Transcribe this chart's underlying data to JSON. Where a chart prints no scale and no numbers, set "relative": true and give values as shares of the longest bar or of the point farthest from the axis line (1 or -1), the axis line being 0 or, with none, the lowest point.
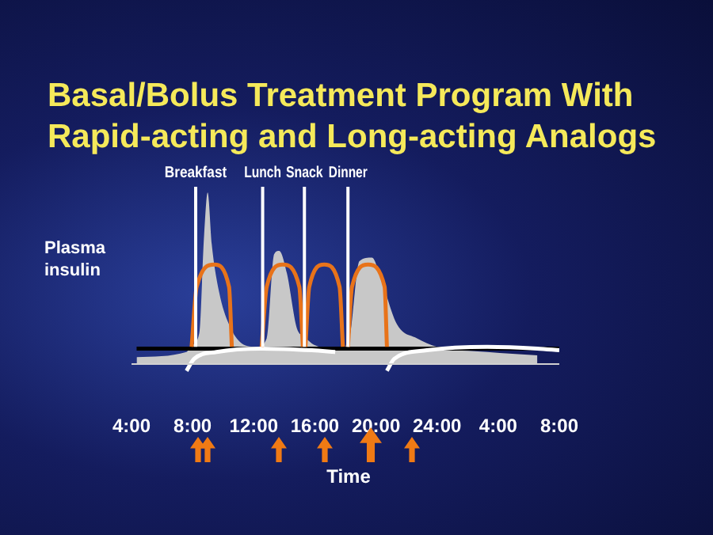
{
  "chart_data": {
    "type": "line",
    "title": "Basal/Bolus Treatment Program With Rapid-acting and Long-acting Analogs",
    "xlabel": "Time",
    "ylabel": "Plasma insulin",
    "relative": true,
    "xlim": [
      "--01-01T04:00",
      "--01-02T08:00"
    ],
    "xticks": [
      {
        "value": "--01-01T04:00",
        "label": "4:00"
      },
      {
        "value": "--01-01T08:00",
        "label": "8:00"
      },
      {
        "value": "--01-01T12:00",
        "label": "12:00"
      },
      {
        "value": "--01-01T16:00",
        "label": "16:00"
      },
      {
        "value": "--01-01T20:00",
        "label": "20:00"
      },
      {
        "value": "--01-02T00:00",
        "label": "24:00"
      },
      {
        "value": "--01-02T04:00",
        "label": "4:00"
      },
      {
        "value": "--01-02T08:00",
        "label": "8:00"
      }
    ],
    "series": [
      {
        "type": "area",
        "color": "#c8c8c8",
        "x": [
          "--01-01T04:20",
          "--01-01T07:36",
          "--01-01T07:56",
          "--01-01T08:26",
          "--01-01T08:45",
          "--01-01T08:59",
          "--01-01T09:15",
          "--01-01T09:44",
          "--01-01T10:23",
          "--01-01T11:13",
          "--01-01T12:12",
          "--01-01T12:51",
          "--01-01T13:20",
          "--01-01T13:40",
          "--01-01T14:10",
          "--01-01T14:49",
          "--01-01T15:19",
          "--01-01T15:48",
          "--01-01T16:18",
          "--01-01T17:26",
          "--01-01T18:16",
          "--01-01T18:55",
          "--01-01T19:44",
          "--01-01T20:23",
          "--01-01T21:23",
          "--01-01T22:41",
          "--01-02T00:00",
          "--01-02T03:17",
          "--01-02T06:34"
        ],
        "values": [
          0.04,
          0.07,
          0.11,
          0.18,
          0.75,
          1,
          0.7,
          0.42,
          0.23,
          0.12,
          0.1,
          0.15,
          0.64,
          0.66,
          0.53,
          0.21,
          0.16,
          0.12,
          0.1,
          0.08,
          0.15,
          0.6,
          0.62,
          0.48,
          0.23,
          0.15,
          0.1,
          0.07,
          0.05
        ]
      },
      {
        "type": "line",
        "color": "#000000",
        "x": [
          "--01-01T04:20",
          "--01-02T08:00"
        ],
        "values": [
          0.09,
          0.09
        ]
      },
      {
        "type": "line",
        "color": "#ffffff",
        "x": [
          "--01-01T07:36",
          "--01-01T08:06",
          "--01-01T09:34",
          "--01-01T12:31",
          "--01-01T15:48",
          "--01-01T17:20",
          "--01-01T17:30",
          "--01-01T20:43",
          "--01-01T21:12",
          "--01-01T23:20",
          "--01-02T03:17",
          "--01-02T06:34",
          "--01-02T08:00"
        ],
        "values": [
          -0.04,
          0.03,
          0.07,
          0.09,
          0.08,
          0.07,
          null,
          -0.04,
          0.03,
          0.08,
          0.1,
          0.09,
          0.08
        ]
      },
      {
        "type": "line",
        "color": "#e8731a",
        "x": [
          "--01-01T07:56",
          "--01-01T08:16",
          "--01-01T09:25",
          "--01-01T10:23",
          "--01-01T10:34",
          "--01-01T10:54",
          "--01-01T12:31",
          "--01-01T12:51",
          "--01-01T13:54",
          "--01-01T14:59",
          "--01-01T15:13",
          "--01-01T15:18",
          "--01-01T15:23",
          "--01-01T15:38",
          "--01-01T16:37",
          "--01-01T17:37",
          "--01-01T17:50",
          "--01-01T18:00",
          "--01-01T18:10",
          "--01-01T18:26",
          "--01-01T19:29",
          "--01-01T20:34",
          "--01-01T20:43"
        ],
        "values": [
          0.1,
          0.45,
          0.58,
          0.45,
          0.1,
          null,
          0.1,
          0.45,
          0.58,
          0.45,
          0.1,
          null,
          0.1,
          0.45,
          0.58,
          0.45,
          0.1,
          null,
          0.1,
          0.45,
          0.58,
          0.45,
          0.1
        ]
      }
    ],
    "ref_lines": [
      {
        "axis": "x",
        "value": "--01-01T08:12",
        "label": "Breakfast",
        "color": "#ffffff"
      },
      {
        "axis": "x",
        "value": "--01-01T12:35",
        "label": "Lunch",
        "color": "#ffffff"
      },
      {
        "axis": "x",
        "value": "--01-01T15:19",
        "label": "Snack",
        "color": "#ffffff"
      },
      {
        "axis": "x",
        "value": "--01-01T18:10",
        "label": "Dinner",
        "color": "#ffffff"
      }
    ],
    "grid": false,
    "legend": false,
    "marker": "none",
    "line_style": "solid"
  }
}
